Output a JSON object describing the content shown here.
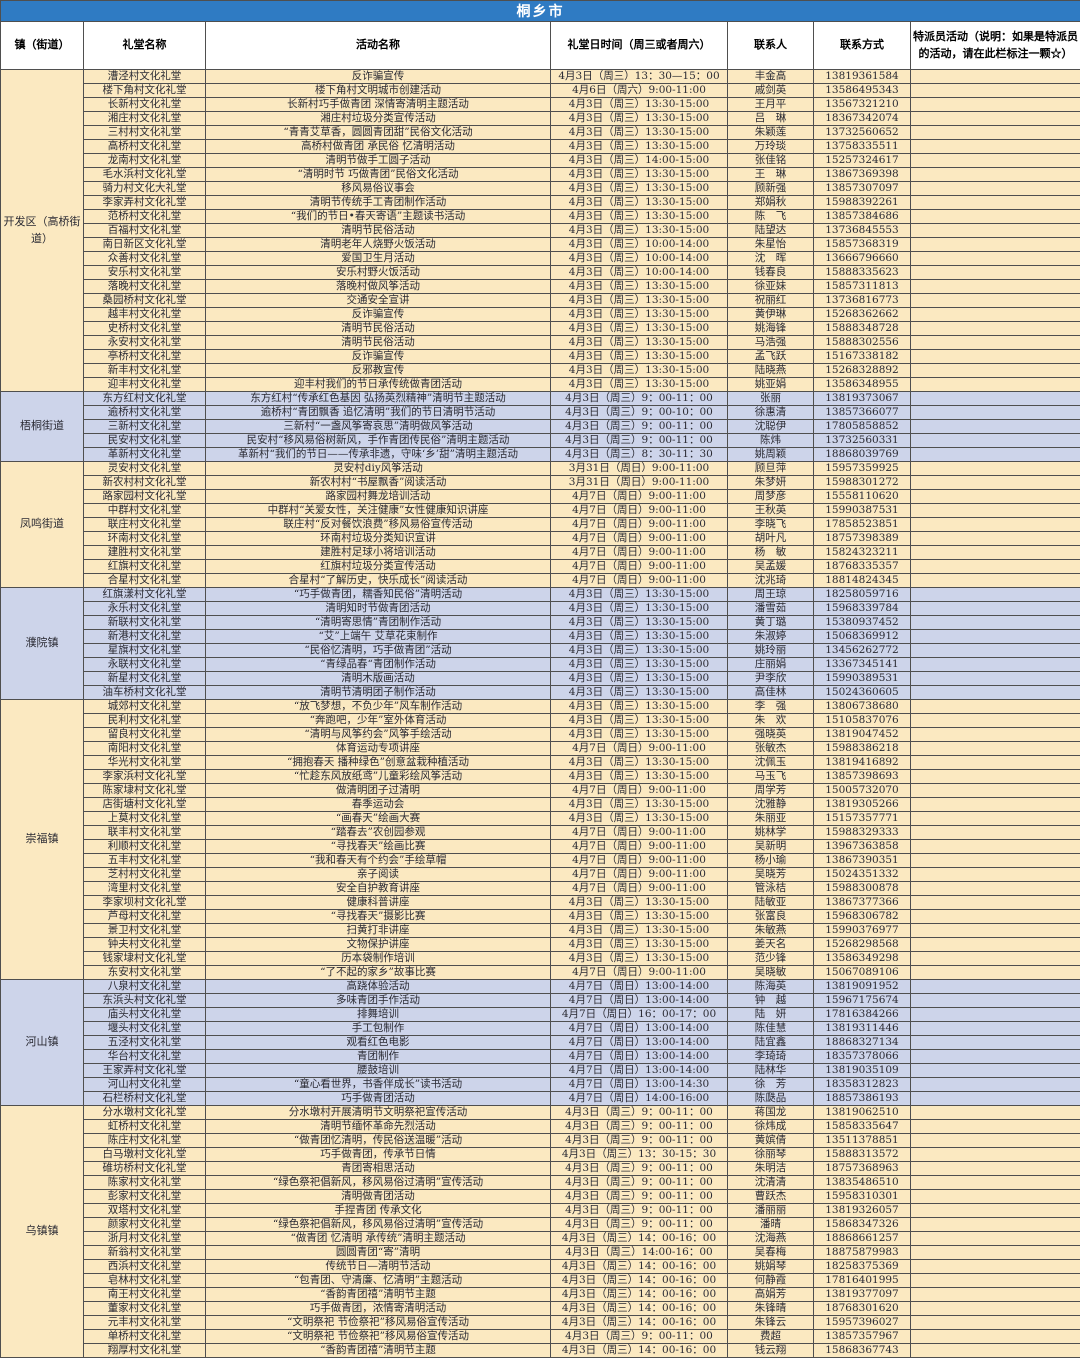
{
  "title": "桐乡市",
  "theme": {
    "title_bg": "#2F7BC3",
    "title_fg": "#FFFFFF",
    "yellow": "#FBE9C1",
    "lavender": "#CDD4EA",
    "grid": "#4F4F4F"
  },
  "columns": [
    "镇（街道）",
    "礼堂名称",
    "活动名称",
    "礼堂日时间（周三或者周六）",
    "联系人",
    "联系方式",
    "特派员活动（说明：如果是特派员的活动，请在此栏标注一颗☆）"
  ],
  "sections": [
    {
      "town": "开发区（高桥街道）",
      "theme": "yellow",
      "rows": [
        [
          "漕泾村文化礼堂",
          "反诈骗宣传",
          "4月3日（周三）13：30—15：00",
          "丰金高",
          "13819361584"
        ],
        [
          "楼下角村文化礼堂",
          "楼下角村文明城市创建活动",
          "4月6日（周六）9:00-11:00",
          "戚剑英",
          "13586495343"
        ],
        [
          "长新村文化礼堂",
          "长新村巧手做青团 深情寄清明主题活动",
          "4月3日（周三）13:30-15:00",
          "王月平",
          "13567321210"
        ],
        [
          "湘庄村文化礼堂",
          "湘庄村垃圾分类宣传活动",
          "4月3日（周三）13:30-15:00",
          "吕　琳",
          "18367342074"
        ],
        [
          "三村村文化礼堂",
          "“青青艾草香，圆圆青团甜”民俗文化活动",
          "4月3日（周三）13:30-15:00",
          "朱颖莲",
          "13732560652"
        ],
        [
          "高桥村文化礼堂",
          "高桥村做青团 承民俗 忆清明活动",
          "4月3日（周三）13:30-15:00",
          "万玲琰",
          "13758335511"
        ],
        [
          "龙南村文化礼堂",
          "清明节做手工圆子活动",
          "4月3日（周三）14:00-15:00",
          "张佳铭",
          "15257324617"
        ],
        [
          "毛水浜村文化礼堂",
          "“清明时节 巧做青团”民俗文化活动",
          "4月3日（周三）13:30-15:00",
          "王　琳",
          "13867369398"
        ],
        [
          "骑力村文化大礼堂",
          "移风易俗议事会",
          "4月3日（周三）13:30-15:00",
          "顾新强",
          "13857307097"
        ],
        [
          "李家弄村文化礼堂",
          "清明节传统手工青团制作活动",
          "4月3日（周三）13:30-15:00",
          "郑娟秋",
          "15988392261"
        ],
        [
          "范桥村文化礼堂",
          "“我们的节日•春天寄语”主题读书活动",
          "4月3日（周三）13:30-15:00",
          "陈　飞",
          "13857384686"
        ],
        [
          "百福村文化礼堂",
          "清明节民俗活动",
          "4月3日（周三）13:30-15:00",
          "陆望达",
          "13736845553"
        ],
        [
          "南日新区文化礼堂",
          "清明老年人烧野火饭活动",
          "4月3日（周三）10:00-14:00",
          "朱星怡",
          "15857368319"
        ],
        [
          "众善村文化礼堂",
          "爱国卫生月活动",
          "4月3日（周三）10:00-14:00",
          "沈　晖",
          "13666796660"
        ],
        [
          "安乐村文化礼堂",
          "安乐村野火饭活动",
          "4月3日（周三）10:00-14:00",
          "钱春良",
          "15888335623"
        ],
        [
          "落晚村文化礼堂",
          "落晚村做风筝活动",
          "4月3日（周三）13:30-15:00",
          "徐亚妹",
          "15857311813"
        ],
        [
          "桑园桥村文化礼堂",
          "交通安全宣讲",
          "4月3日（周三）13:30-15:00",
          "祝丽红",
          "13736816773"
        ],
        [
          "越丰村文化礼堂",
          "反诈骗宣传",
          "4月3日（周三）13:30-15:00",
          "黄伊琳",
          "15268362662"
        ],
        [
          "史桥村文化礼堂",
          "清明节民俗活动",
          "4月3日（周三）13:30-15:00",
          "姚海锋",
          "15888348728"
        ],
        [
          "永安村文化礼堂",
          "清明节民俗活动",
          "4月3日（周三）13:30-15:00",
          "马浩强",
          "15888302556"
        ],
        [
          "亭桥村文化礼堂",
          "反诈骗宣传",
          "4月3日（周三）13:30-15:00",
          "孟飞跃",
          "15167338182"
        ],
        [
          "新丰村文化礼堂",
          "反邪教宣传",
          "4月3日（周三）13:30-15:00",
          "陆晓燕",
          "15268328892"
        ],
        [
          "迎丰村文化礼堂",
          "迎丰村我们的节日承传统做青团活动",
          "4月3日（周三）13:30-15:00",
          "姚亚娟",
          "13586348955"
        ]
      ]
    },
    {
      "town": "梧桐街道",
      "theme": "lavender",
      "rows": [
        [
          "东方红村文化礼堂",
          "东方红村“传承红色基因 弘扬英烈精神”清明节主题活动",
          "4月3日（周三）9：00-11：00",
          "张丽",
          "13819373067"
        ],
        [
          "逾桥村文化礼堂",
          "逾桥村“青团飘香 追忆清明”我们的节日清明节活动",
          "4月3日（周三）9：00-10：00",
          "徐惠清",
          "13857366077"
        ],
        [
          "三新村文化礼堂",
          "三新村“一盏风筝寄哀思”清明做风筝活动",
          "4月3日（周三）9：00-11：00",
          "沈聪伊",
          "17805858852"
        ],
        [
          "民安村文化礼堂",
          "民安村“移风易俗树新风，手作青团传民俗”清明主题活动",
          "4月3日（周三）9：00-11：00",
          "陈炜",
          "13732560331"
        ],
        [
          "革新村文化礼堂",
          "革新村“我们的节日——传承非遗，守味‘乡’甜”清明主题活动",
          "4月3日（周三）8：30-11：30",
          "姚周颖",
          "18868039769"
        ]
      ]
    },
    {
      "town": "凤鸣街道",
      "theme": "yellow",
      "rows": [
        [
          "灵安村文化礼堂",
          "灵安村diy风筝活动",
          "3月31日（周日）9:00-11:00",
          "顾旦萍",
          "15957359925"
        ],
        [
          "新农村村文化礼堂",
          "新农村村“书屋飘香”阅读活动",
          "3月31日（周日）9:00-11:00",
          "朱梦妍",
          "15988301272"
        ],
        [
          "路家园村文化礼堂",
          "路家园村舞龙培训活动",
          "4月7日（周日）9:00-11:00",
          "周梦彦",
          "15558110620"
        ],
        [
          "中群村文化礼堂",
          "中群村“关爱女性，关注健康”女性健康知识讲座",
          "4月7日（周日）9:00-11:00",
          "王秋英",
          "15990387531"
        ],
        [
          "联庄村文化礼堂",
          "联庄村“反对餐饮浪费”移风易俗宣传活动",
          "4月7日（周日）9:00-11:00",
          "李晓飞",
          "17858523851"
        ],
        [
          "环南村文化礼堂",
          "环南村垃圾分类知识宣讲",
          "4月7日（周日）9:00-11:00",
          "胡叶凡",
          "18757398389"
        ],
        [
          "建胜村文化礼堂",
          "建胜村足球小将培训活动",
          "4月7日（周日）9:00-11:00",
          "杨　敏",
          "15824323211"
        ],
        [
          "红旗村文化礼堂",
          "红旗村垃圾分类宣传活动",
          "4月7日（周日）9:00-11:00",
          "吴孟媛",
          "18768335357"
        ],
        [
          "合星村文化礼堂",
          "合星村“了解历史，快乐成长”阅读活动",
          "4月7日（周日）9:00-11:00",
          "沈兆琦",
          "18814824345"
        ]
      ]
    },
    {
      "town": "濮院镇",
      "theme": "lavender",
      "rows": [
        [
          "红旗漾村文化礼堂",
          "“巧手做青团，糯香知民俗”清明活动",
          "4月3日（周三）13:30-15:00",
          "周王琼",
          "18258059716"
        ],
        [
          "永乐村文化礼堂",
          "清明知时节做青团活动",
          "4月3日（周三）13:30-15:00",
          "潘雪茹",
          "15968339784"
        ],
        [
          "新联村文化礼堂",
          "“清明寄思情”青团制作活动",
          "4月3日（周三）13:30-15:00",
          "黄丁璐",
          "15380937452"
        ],
        [
          "新港村文化礼堂",
          "“艾”上端午 艾草花束制作",
          "4月3日（周三）13:30-15:00",
          "朱淑婷",
          "15068369912"
        ],
        [
          "星旗村文化礼堂",
          "“民俗忆清明，巧手做青团”活动",
          "4月3日（周三）13:30-15:00",
          "姚玲丽",
          "13456262772"
        ],
        [
          "永联村文化礼堂",
          "“青绿品春“青团制作活动",
          "4月3日（周三）13:30-15:00",
          "庄丽娟",
          "13367345141"
        ],
        [
          "新星村文化礼堂",
          "清明木版画活动",
          "4月3日（周三）13:30-15:00",
          "尹李欣",
          "15990389531"
        ],
        [
          "油车桥村文化礼堂",
          "清明节清明团子制作活动",
          "4月3日（周三）13:30-15:00",
          "高佳林",
          "15024360605"
        ]
      ]
    },
    {
      "town": "崇福镇",
      "theme": "yellow",
      "rows": [
        [
          "城郊村文化礼堂",
          "“放飞梦想，不负少年”风车制作活动",
          "4月3日（周三）13:30-15:00",
          "李　强",
          "13806738680"
        ],
        [
          "民利村文化礼堂",
          "“奔跑吧，少年”室外体育活动",
          "4月3日（周三）13:30-15:00",
          "朱　欢",
          "15105837076"
        ],
        [
          "留良村文化礼堂",
          "“清明与风筝约会”风筝手绘活动",
          "4月3日（周三）13:30-15:00",
          "强晓英",
          "13819047452"
        ],
        [
          "南阳村文化礼堂",
          "体育运动专项讲座",
          "4月7日（周日）9:00-11:00",
          "张敏杰",
          "15988386218"
        ],
        [
          "华光村文化礼堂",
          "“拥抱春天 播种绿色”创意盆栽种植活动",
          "4月3日（周三）13:30-15:00",
          "沈佩玉",
          "13819416892"
        ],
        [
          "李家浜村文化礼堂",
          "“忙趁东风放纸鸢”儿童彩绘风筝活动",
          "4月3日（周三）13:30-15:00",
          "马玉飞",
          "13857398693"
        ],
        [
          "陈家埭村文化礼堂",
          "做清明团子过清明",
          "4月7日（周日）9:00-11:00",
          "周学芳",
          "15005732070"
        ],
        [
          "店街塘村文化礼堂",
          "春季运动会",
          "4月3日（周三）13:30-15:00",
          "沈雅静",
          "13819305266"
        ],
        [
          "上莫村文化礼堂",
          "“画春天”绘画大赛",
          "4月3日（周三）13:30-15:00",
          "朱丽亚",
          "15157357771"
        ],
        [
          "联丰村文化礼堂",
          "“踏春去”农创园参观",
          "4月7日（周日）9:00-11:00",
          "姚林学",
          "15988329333"
        ],
        [
          "利顺村文化礼堂",
          "“寻找春天”绘画比赛",
          "4月7日（周日）9:00-11:00",
          "吴新明",
          "13967363858"
        ],
        [
          "五丰村文化礼堂",
          "“我和春天有个约会”手绘草帽",
          "4月7日（周日）9:00-11:00",
          "杨小瑜",
          "13867390351"
        ],
        [
          "芝村村文化礼堂",
          "亲子阅读",
          "4月7日（周日）9:00-11:00",
          "吴晓芳",
          "15024351332"
        ],
        [
          "湾里村文化礼堂",
          "安全自护教育讲座",
          "4月7日（周日）9:00-11:00",
          "管泳桔",
          "15988300878"
        ],
        [
          "李家坝村文化礼堂",
          "健康科普讲座",
          "4月3日（周三）13:30-15:00",
          "陆敏亚",
          "13867377366"
        ],
        [
          "芦母村文化礼堂",
          "“寻找春天”摄影比赛",
          "4月3日（周三）13:30-15:00",
          "张富良",
          "15968306782"
        ],
        [
          "景卫村文化礼堂",
          "扫黄打非讲座",
          "4月3日（周三）13:30-15:00",
          "朱敏燕",
          "15990376977"
        ],
        [
          "钟夫村文化礼堂",
          "文物保护讲座",
          "4月3日（周三）13:30-15:00",
          "姜天名",
          "15268298568"
        ],
        [
          "钱家埭村文化礼堂",
          "历本袋制作培训",
          "4月3日（周三）13:30-15:00",
          "范少锋",
          "13586349298"
        ],
        [
          "东安村文化礼堂",
          "“了不起的家乡”故事比赛",
          "4月7日（周日）9:00-11:00",
          "吴晓敏",
          "15067089106"
        ]
      ]
    },
    {
      "town": "河山镇",
      "theme": "lavender",
      "rows": [
        [
          "八泉村文化礼堂",
          "高跷体验活动",
          "4月7日（周日）13:00-14:00",
          "陈海英",
          "13819091952"
        ],
        [
          "东浜头村文化礼堂",
          "多味青团手作活动",
          "4月7日（周日）13:00-14:00",
          "钟　越",
          "15967175674"
        ],
        [
          "庙头村文化礼堂",
          "排舞培训",
          "4月7日（周日）16：00-17：00",
          "陆　妍",
          "17816384266"
        ],
        [
          "堰头村文化礼堂",
          "手工包制作",
          "4月7日（周日）13:00-14:00",
          "陈佳慧",
          "13819311446"
        ],
        [
          "五泾村文化礼堂",
          "观看红色电影",
          "4月7日（周日）13:00-14:00",
          "陆宜鑫",
          "18868327134"
        ],
        [
          "华台村文化礼堂",
          "青团制作",
          "4月7日（周日）13:00-14:00",
          "李琦琦",
          "18357378066"
        ],
        [
          "王家弄村文化礼堂",
          "腰鼓培训",
          "4月7日（周日）13:00-14:00",
          "陆林华",
          "13819035109"
        ],
        [
          "河山村文化礼堂",
          "“童心看世界，书香伴成长”读书活动",
          "4月7日（周日）13:00-14:30",
          "徐　芳",
          "18358312823"
        ],
        [
          "石栏桥村文化礼堂",
          "巧手做青团活动",
          "4月7日（周日）14:00-16:00",
          "陈瓞品",
          "18857386193"
        ]
      ]
    },
    {
      "town": "乌镇镇",
      "theme": "yellow",
      "rows": [
        [
          "分水墩村文化礼堂",
          "分水墩村开展清明节文明祭祀宣传活动",
          "4月3日（周三）9：00-11：00",
          "蒋国龙",
          "13819062510"
        ],
        [
          "虹桥村文化礼堂",
          "清明节缅怀革命先烈活动",
          "4月3日（周三）9：00-11：00",
          "徐炜成",
          "15858335647"
        ],
        [
          "陈庄村文化礼堂",
          "“做青团忆清明，传民俗送温暖”活动",
          "4月3日（周三）9：00-11：00",
          "黄嫔倩",
          "13511378851"
        ],
        [
          "白马墩村文化礼堂",
          "巧手做青团，传承节日情",
          "4月3日（周三）13：30-15：30",
          "徐丽琴",
          "15888313572"
        ],
        [
          "碓坊桥村文化礼堂",
          "青团寄相思活动",
          "4月3日（周三）9：00-11：00",
          "朱明洁",
          "18757368963"
        ],
        [
          "陈家村文化礼堂",
          "“绿色祭祀倡新风，移风易俗过清明”宣传活动",
          "4月3日（周三）9：00-11：00",
          "沈清清",
          "13835486510"
        ],
        [
          "彭家村文化礼堂",
          "清明做青团活动",
          "4月3日（周三）9：00-11：00",
          "曹跃杰",
          "15958310301"
        ],
        [
          "双塔村文化礼堂",
          "手捏青团 传承文化",
          "4月3日（周三）9：00-11：00",
          "潘丽丽",
          "13819326057"
        ],
        [
          "颜家村文化礼堂",
          "“绿色祭祀倡新风，移风易俗过清明”宣传活动",
          "4月3日（周三）9：00-11：00",
          "潘晴",
          "15868347326"
        ],
        [
          "浙月村文化礼堂",
          "“做青团 忆清明 承传统”清明主题活动",
          "4月3日（周三）14：00-16：00",
          "沈海燕",
          "18868661257"
        ],
        [
          "新翁村文化礼堂",
          "圆圆青团“寄”清明",
          "4月3日（周三）14:00-16：00",
          "吴春梅",
          "18875879983"
        ],
        [
          "西浜村文化礼堂",
          "传统节日—清明节活动",
          "4月3日（周三）14：00-16：00",
          "姚娟琴",
          "18258375369"
        ],
        [
          "皂林村文化礼堂",
          "“包青团、守清廉、忆清明”主题活动",
          "4月3日（周三）14：00-16：00",
          "何静霞",
          "17816401995"
        ],
        [
          "南王村文化礼堂",
          "“香韵青团禧”清明节主题",
          "4月3日（周三）14：00-16：00",
          "高娟芳",
          "13819377097"
        ],
        [
          "董家村文化礼堂",
          "巧手做青团，浓情寄清明活动",
          "4月3日（周三）14：00-16：00",
          "朱锋晴",
          "18768301620"
        ],
        [
          "元丰村文化礼堂",
          "“文明祭祀 节俭祭祀”移风易俗宣传活动",
          "4月3日（周三）14：00-16：00",
          "朱锋云",
          "15957396027"
        ],
        [
          "单桥村文化礼堂",
          "“文明祭祀 节俭祭祀”移风易俗宣传活动",
          "4月3日（周三）9：00-11：00",
          "费超",
          "13857357967"
        ],
        [
          "翔厚村文化礼堂",
          "“香韵青团禧”清明节主题",
          "4月3日（周三）14：00-16：00",
          "钱云翔",
          "15868367743"
        ]
      ]
    }
  ]
}
